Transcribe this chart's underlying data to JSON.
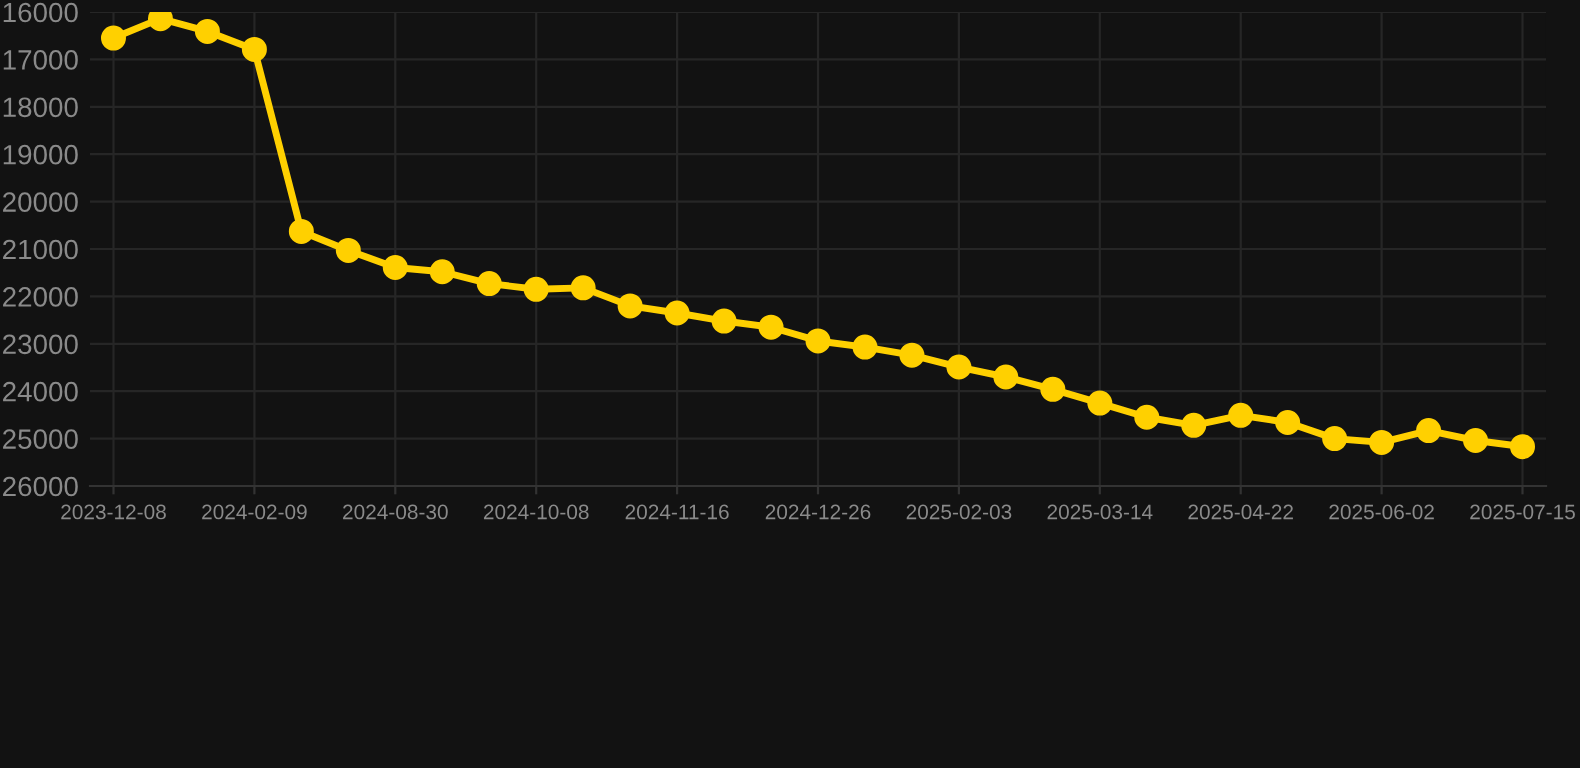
{
  "chart_data": {
    "type": "line",
    "categories": [
      "2023-12-08",
      null,
      null,
      "2024-02-09",
      null,
      null,
      "2024-08-30",
      null,
      null,
      "2024-10-08",
      null,
      null,
      "2024-11-16",
      null,
      null,
      "2024-12-26",
      null,
      null,
      "2025-02-03",
      null,
      null,
      "2025-03-14",
      null,
      null,
      "2025-04-22",
      null,
      null,
      "2025-06-02",
      null,
      null,
      "2025-07-15"
    ],
    "series": [
      {
        "color": "#ffd000",
        "values": [
          16550,
          16140,
          16410,
          16790,
          20630,
          21030,
          21390,
          21480,
          21730,
          21850,
          21820,
          22200,
          22350,
          22520,
          22650,
          22940,
          23070,
          23240,
          23490,
          23700,
          23960,
          24250,
          24550,
          24720,
          24510,
          24660,
          25000,
          25080,
          24830,
          25040,
          25170
        ]
      }
    ],
    "ylim": [
      26000,
      16000
    ],
    "yticks": [
      16000,
      17000,
      18000,
      19000,
      20000,
      21000,
      22000,
      23000,
      24000,
      25000,
      26000
    ],
    "grid": true,
    "marker": "circle",
    "line_style": "solid"
  }
}
